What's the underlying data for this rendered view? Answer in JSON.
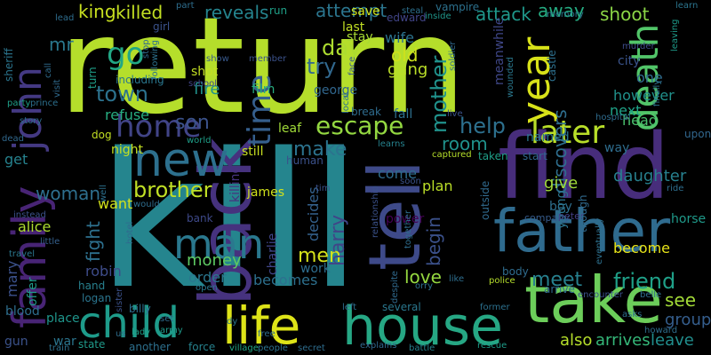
{
  "words": [
    {
      "text": "return",
      "color": "#b5de2b"
    },
    {
      "text": "kill",
      "color": "#25858e"
    },
    {
      "text": "find",
      "color": "#472d7b"
    },
    {
      "text": "take",
      "color": "#6ccd5a"
    },
    {
      "text": "father",
      "color": "#2f6b8e"
    },
    {
      "text": "tell",
      "color": "#3e4a89"
    },
    {
      "text": "back",
      "color": "#46327e"
    },
    {
      "text": "new",
      "color": "#2d708e"
    },
    {
      "text": "life",
      "color": "#dde318"
    },
    {
      "text": "house",
      "color": "#26a784"
    },
    {
      "text": "child",
      "color": "#1e9b8a"
    },
    {
      "text": "family",
      "color": "#482475"
    },
    {
      "text": "john",
      "color": "#443983"
    },
    {
      "text": "man",
      "color": "#2a788e"
    },
    {
      "text": "year",
      "color": "#d8e219"
    },
    {
      "text": "death",
      "color": "#52c569"
    },
    {
      "text": "later",
      "color": "#b8de29"
    },
    {
      "text": "home",
      "color": "#414487"
    },
    {
      "text": "time",
      "color": "#355f8d"
    },
    {
      "text": "go",
      "color": "#22a785"
    },
    {
      "text": "killed",
      "color": "#c2df23"
    },
    {
      "text": "king",
      "color": "#c8e020"
    },
    {
      "text": "reveals",
      "color": "#25848e"
    },
    {
      "text": "attempt",
      "color": "#2b758e"
    },
    {
      "text": "attack",
      "color": "#1f988b"
    },
    {
      "text": "away",
      "color": "#25ac82"
    },
    {
      "text": "shoot",
      "color": "#8bd646"
    },
    {
      "text": "escape",
      "color": "#93d741"
    },
    {
      "text": "son",
      "color": "#3b528b"
    },
    {
      "text": "town",
      "color": "#2c728e"
    },
    {
      "text": "day",
      "color": "#addc30"
    },
    {
      "text": "try",
      "color": "#31688e"
    },
    {
      "text": "mother",
      "color": "#20928c"
    },
    {
      "text": "help",
      "color": "#2d708e"
    },
    {
      "text": "brother",
      "color": "#c0df25"
    },
    {
      "text": "friend",
      "color": "#1fa088"
    },
    {
      "text": "meet",
      "color": "#27808e"
    },
    {
      "text": "love",
      "color": "#95d840"
    },
    {
      "text": "money",
      "color": "#5ec962"
    },
    {
      "text": "men",
      "color": "#d5e21a"
    },
    {
      "text": "make",
      "color": "#2c738e"
    },
    {
      "text": "fire",
      "color": "#21918c"
    },
    {
      "text": "fight",
      "color": "#2d708e"
    },
    {
      "text": "woman",
      "color": "#2e6f8e"
    },
    {
      "text": "harry",
      "color": "#404588"
    },
    {
      "text": "begin",
      "color": "#3b518b"
    },
    {
      "text": "room",
      "color": "#20928c"
    },
    {
      "text": "old",
      "color": "#cde11d"
    },
    {
      "text": "gang",
      "color": "#bade28"
    },
    {
      "text": "wife",
      "color": "#2c738e"
    },
    {
      "text": "discovers",
      "color": "#2e6e8e"
    },
    {
      "text": "see",
      "color": "#a2da37"
    },
    {
      "text": "give",
      "color": "#a0da39"
    },
    {
      "text": "daughter",
      "color": "#27808e"
    },
    {
      "text": "arrives",
      "color": "#35b779"
    },
    {
      "text": "also",
      "color": "#b5de2b"
    },
    {
      "text": "leave",
      "color": "#218e8d"
    },
    {
      "text": "group",
      "color": "#355e8d"
    },
    {
      "text": "become",
      "color": "#e7e419"
    },
    {
      "text": "mary",
      "color": "#3b518b"
    },
    {
      "text": "robin",
      "color": "#3e4c8a"
    },
    {
      "text": "alice",
      "color": "#addc30"
    },
    {
      "text": "want",
      "color": "#d2e21b"
    },
    {
      "text": "james",
      "color": "#d0e11c"
    },
    {
      "text": "order",
      "color": "#2a768e"
    },
    {
      "text": "becomes",
      "color": "#2d708e"
    },
    {
      "text": "work",
      "color": "#2e6d8e"
    },
    {
      "text": "plan",
      "color": "#bade28"
    },
    {
      "text": "come",
      "color": "#2f6c8e"
    },
    {
      "text": "decides",
      "color": "#34618d"
    },
    {
      "text": "refuse",
      "color": "#27ad81"
    },
    {
      "text": "head",
      "color": "#4ac16d"
    },
    {
      "text": "next",
      "color": "#1fa287"
    },
    {
      "text": "one",
      "color": "#2f6c8e"
    },
    {
      "text": "however",
      "color": "#21918c"
    },
    {
      "text": "city",
      "color": "#3a548c"
    },
    {
      "text": "way",
      "color": "#2e6d8e"
    },
    {
      "text": "named",
      "color": "#2a778e"
    },
    {
      "text": "night",
      "color": "#c5e021"
    },
    {
      "text": "killing",
      "color": "#46327e"
    },
    {
      "text": "still",
      "color": "#c8e020"
    },
    {
      "text": "boy",
      "color": "#2e6f8e"
    },
    {
      "text": "young",
      "color": "#2b748e"
    },
    {
      "text": "mr",
      "color": "#2a788e"
    },
    {
      "text": "get",
      "color": "#26828e"
    },
    {
      "text": "fall",
      "color": "#2d708e"
    },
    {
      "text": "george",
      "color": "#31678e"
    },
    {
      "text": "last",
      "color": "#c2df23"
    },
    {
      "text": "stay",
      "color": "#a8db34"
    },
    {
      "text": "save",
      "color": "#cde11d"
    },
    {
      "text": "edward",
      "color": "#414487"
    },
    {
      "text": "vampire",
      "color": "#2c718e"
    },
    {
      "text": "run",
      "color": "#1fa088"
    },
    {
      "text": "film",
      "color": "#27ad81"
    },
    {
      "text": "shot",
      "color": "#c2df23"
    },
    {
      "text": "show",
      "color": "#38598c"
    },
    {
      "text": "school",
      "color": "#414487"
    },
    {
      "text": "leaf",
      "color": "#a0da39"
    },
    {
      "text": "break",
      "color": "#2f6c8e"
    },
    {
      "text": "human",
      "color": "#3b518b"
    },
    {
      "text": "meanwhile",
      "color": "#3f4788"
    },
    {
      "text": "upon",
      "color": "#31678e"
    },
    {
      "text": "start",
      "color": "#31678e"
    },
    {
      "text": "taken",
      "color": "#1f9f88"
    },
    {
      "text": "peter",
      "color": "#433e85"
    },
    {
      "text": "power",
      "color": "#440154"
    },
    {
      "text": "company",
      "color": "#365c8d"
    },
    {
      "text": "horse",
      "color": "#1f9a8a"
    },
    {
      "text": "bank",
      "color": "#3e4989"
    },
    {
      "text": "charlie",
      "color": "#404588"
    },
    {
      "text": "billy",
      "color": "#2e6e8e"
    },
    {
      "text": "hand",
      "color": "#27808e"
    },
    {
      "text": "logan",
      "color": "#2b758e"
    },
    {
      "text": "blood",
      "color": "#2e6e8e"
    },
    {
      "text": "offer",
      "color": "#1f9a8a"
    },
    {
      "text": "place",
      "color": "#1f958b"
    },
    {
      "text": "gun",
      "color": "#3b528b"
    },
    {
      "text": "war",
      "color": "#2b758e"
    },
    {
      "text": "state",
      "color": "#1f9a8a"
    },
    {
      "text": "another",
      "color": "#2d708e"
    },
    {
      "text": "force",
      "color": "#26828e"
    },
    {
      "text": "village",
      "color": "#22a785"
    },
    {
      "text": "people",
      "color": "#2c728e"
    },
    {
      "text": "secret",
      "color": "#2e6d8e"
    },
    {
      "text": "explains",
      "color": "#31688e"
    },
    {
      "text": "battle",
      "color": "#27808e"
    },
    {
      "text": "rescue",
      "color": "#1e9c89"
    },
    {
      "text": "several",
      "color": "#2a778e"
    },
    {
      "text": "former",
      "color": "#2c718e"
    },
    {
      "text": "despite",
      "color": "#306a8e"
    },
    {
      "text": "police",
      "color": "#b5de2b"
    },
    {
      "text": "arrive",
      "color": "#306a8e"
    },
    {
      "text": "body",
      "color": "#2f6c8e"
    },
    {
      "text": "captured",
      "color": "#b5de2b"
    },
    {
      "text": "learns",
      "color": "#26828e"
    },
    {
      "text": "local",
      "color": "#2d708e"
    },
    {
      "text": "live",
      "color": "#3b528b"
    },
    {
      "text": "hospital",
      "color": "#2f6c8e"
    },
    {
      "text": "steal",
      "color": "#2d708e"
    },
    {
      "text": "inside",
      "color": "#1f968b"
    },
    {
      "text": "memory",
      "color": "#2a778e"
    },
    {
      "text": "learn",
      "color": "#2b758e"
    },
    {
      "text": "leaving",
      "color": "#1e9b8a"
    },
    {
      "text": "murder",
      "color": "#3e4c8a"
    },
    {
      "text": "castle",
      "color": "#2d708e"
    },
    {
      "text": "wounded",
      "color": "#2a788e"
    },
    {
      "text": "soldier",
      "color": "#306a8e"
    },
    {
      "text": "face",
      "color": "#38598c"
    },
    {
      "text": "finally",
      "color": "#2c728e"
    },
    {
      "text": "turn",
      "color": "#1f9f88"
    },
    {
      "text": "girl",
      "color": "#3b528b"
    },
    {
      "text": "sheriff",
      "color": "#2b758e"
    },
    {
      "text": "party",
      "color": "#1fa088"
    },
    {
      "text": "prince",
      "color": "#2d708e"
    },
    {
      "text": "story",
      "color": "#2e6d8e"
    },
    {
      "text": "dead",
      "color": "#31688e"
    },
    {
      "text": "dog",
      "color": "#c2df23"
    },
    {
      "text": "including",
      "color": "#2a778e"
    },
    {
      "text": "call",
      "color": "#2f6c8e"
    },
    {
      "text": "visit",
      "color": "#306a8e"
    },
    {
      "text": "part",
      "color": "#2e6e8e"
    },
    {
      "text": "lead",
      "color": "#2e6d8e"
    },
    {
      "text": "stop",
      "color": "#306a8e"
    },
    {
      "text": "following",
      "color": "#2c728e"
    },
    {
      "text": "member",
      "color": "#3b528b"
    },
    {
      "text": "world",
      "color": "#1f9f88"
    },
    {
      "text": "instead",
      "color": "#3b528b"
    },
    {
      "text": "travel",
      "color": "#2a778e"
    },
    {
      "text": "little",
      "color": "#35608d"
    },
    {
      "text": "would",
      "color": "#2e6d8e"
    },
    {
      "text": "well",
      "color": "#2d708e"
    },
    {
      "text": "hotel",
      "color": "#306a8e"
    },
    {
      "text": "open",
      "color": "#2a778e"
    },
    {
      "text": "set",
      "color": "#2f6c8e"
    },
    {
      "text": "army",
      "color": "#1f9a8a"
    },
    {
      "text": "dy",
      "color": "#2b758e"
    },
    {
      "text": "free",
      "color": "#2f6c8e"
    },
    {
      "text": "left",
      "color": "#2e6d8e"
    },
    {
      "text": "lady",
      "color": "#1f9f88"
    },
    {
      "text": "us",
      "color": "#2e6e8e"
    },
    {
      "text": "train",
      "color": "#2d708e"
    },
    {
      "text": "sister",
      "color": "#3b528b"
    },
    {
      "text": "relationship",
      "color": "#3b528b"
    },
    {
      "text": "tim",
      "color": "#3b528b"
    },
    {
      "text": "soon",
      "color": "#3b528b"
    },
    {
      "text": "together",
      "color": "#2e6d8e"
    },
    {
      "text": "outside",
      "color": "#306a8e"
    },
    {
      "text": "orry",
      "color": "#2d708e"
    },
    {
      "text": "like",
      "color": "#2e6e8e"
    },
    {
      "text": "though",
      "color": "#306a8e"
    },
    {
      "text": "eventually",
      "color": "#2d708e"
    },
    {
      "text": "asks",
      "color": "#2e6d8e"
    },
    {
      "text": "encounter",
      "color": "#3b528b"
    },
    {
      "text": "belle",
      "color": "#2f6c8e"
    },
    {
      "text": "howard",
      "color": "#2e6d8e"
    },
    {
      "text": "ride",
      "color": "#2e6e8e"
    }
  ]
}
